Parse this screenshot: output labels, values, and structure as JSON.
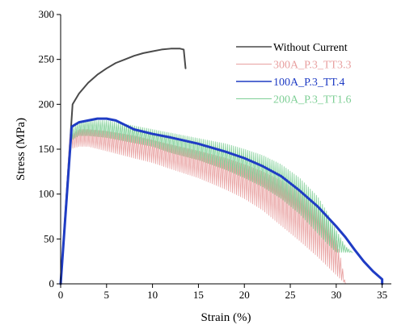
{
  "chart_data": {
    "type": "line",
    "title": "",
    "xlabel": "Strain (%)",
    "ylabel": "Stress (MPa)",
    "xlim": [
      0,
      36
    ],
    "ylim": [
      0,
      300
    ],
    "x_ticks": [
      0,
      5,
      10,
      15,
      20,
      25,
      30,
      35
    ],
    "y_ticks": [
      0,
      50,
      100,
      150,
      200,
      250,
      300
    ],
    "grid": false,
    "legend_position": "top-right",
    "series": [
      {
        "name": "Without Current",
        "color": "#4a4a4a",
        "oscillating": false,
        "upper": [
          [
            0,
            0
          ],
          [
            1.3,
            200
          ],
          [
            2,
            212
          ],
          [
            3,
            224
          ],
          [
            4,
            233
          ],
          [
            5,
            240
          ],
          [
            6,
            246
          ],
          [
            7,
            250
          ],
          [
            8,
            254
          ],
          [
            9,
            257
          ],
          [
            10,
            259
          ],
          [
            11,
            261
          ],
          [
            12,
            262
          ],
          [
            13,
            262
          ],
          [
            13.4,
            261
          ],
          [
            13.6,
            240
          ]
        ],
        "lower": []
      },
      {
        "name": "300A_P.3_TT3.3",
        "color": "#e8a0a0",
        "oscillating": true,
        "upper": [
          [
            0,
            0
          ],
          [
            1,
            165
          ],
          [
            2,
            172
          ],
          [
            3,
            172
          ],
          [
            5,
            170
          ],
          [
            8,
            165
          ],
          [
            10,
            160
          ],
          [
            12,
            155
          ],
          [
            15,
            148
          ],
          [
            18,
            140
          ],
          [
            20,
            133
          ],
          [
            22,
            125
          ],
          [
            24,
            115
          ],
          [
            26,
            103
          ],
          [
            28,
            85
          ],
          [
            29,
            70
          ],
          [
            30,
            50
          ],
          [
            30.5,
            28
          ],
          [
            31,
            0
          ]
        ],
        "lower": [
          [
            0,
            0
          ],
          [
            1,
            150
          ],
          [
            2,
            153
          ],
          [
            3,
            153
          ],
          [
            5,
            148
          ],
          [
            8,
            140
          ],
          [
            10,
            135
          ],
          [
            12,
            128
          ],
          [
            15,
            118
          ],
          [
            18,
            105
          ],
          [
            20,
            95
          ],
          [
            22,
            82
          ],
          [
            24,
            65
          ],
          [
            26,
            48
          ],
          [
            28,
            30
          ],
          [
            29,
            20
          ],
          [
            30,
            10
          ],
          [
            30.5,
            5
          ],
          [
            31,
            0
          ]
        ]
      },
      {
        "name": "200A_P.3_TT1.6",
        "color": "#7fcf96",
        "oscillating": true,
        "upper": [
          [
            0,
            0
          ],
          [
            1.2,
            172
          ],
          [
            2,
            180
          ],
          [
            3,
            182
          ],
          [
            5,
            182
          ],
          [
            8,
            176
          ],
          [
            10,
            172
          ],
          [
            12,
            168
          ],
          [
            15,
            162
          ],
          [
            18,
            156
          ],
          [
            20,
            150
          ],
          [
            22,
            143
          ],
          [
            24,
            133
          ],
          [
            26,
            118
          ],
          [
            28,
            97
          ],
          [
            29,
            80
          ],
          [
            30,
            60
          ],
          [
            31,
            42
          ],
          [
            31.8,
            35
          ]
        ],
        "lower": [
          [
            0,
            0
          ],
          [
            1.2,
            160
          ],
          [
            2,
            165
          ],
          [
            3,
            165
          ],
          [
            5,
            163
          ],
          [
            8,
            157
          ],
          [
            10,
            153
          ],
          [
            12,
            146
          ],
          [
            15,
            138
          ],
          [
            18,
            127
          ],
          [
            20,
            118
          ],
          [
            22,
            108
          ],
          [
            24,
            95
          ],
          [
            26,
            78
          ],
          [
            28,
            56
          ],
          [
            29,
            45
          ],
          [
            30,
            35
          ],
          [
            31,
            35
          ],
          [
            31.8,
            35
          ]
        ]
      },
      {
        "name": "100A_P.3_TT.4",
        "color": "#1f3cc4",
        "oscillating": false,
        "upper": [
          [
            0,
            0
          ],
          [
            1.2,
            175
          ],
          [
            2,
            180
          ],
          [
            3,
            182
          ],
          [
            4,
            184
          ],
          [
            5,
            184
          ],
          [
            6,
            182
          ],
          [
            7,
            177
          ],
          [
            8,
            172
          ],
          [
            10,
            167
          ],
          [
            12,
            163
          ],
          [
            15,
            156
          ],
          [
            18,
            147
          ],
          [
            20,
            140
          ],
          [
            22,
            131
          ],
          [
            24,
            120
          ],
          [
            26,
            104
          ],
          [
            28,
            86
          ],
          [
            30,
            64
          ],
          [
            31,
            52
          ],
          [
            32,
            38
          ],
          [
            33,
            25
          ],
          [
            34,
            14
          ],
          [
            35,
            5
          ],
          [
            35,
            0
          ]
        ],
        "lower": []
      }
    ]
  }
}
